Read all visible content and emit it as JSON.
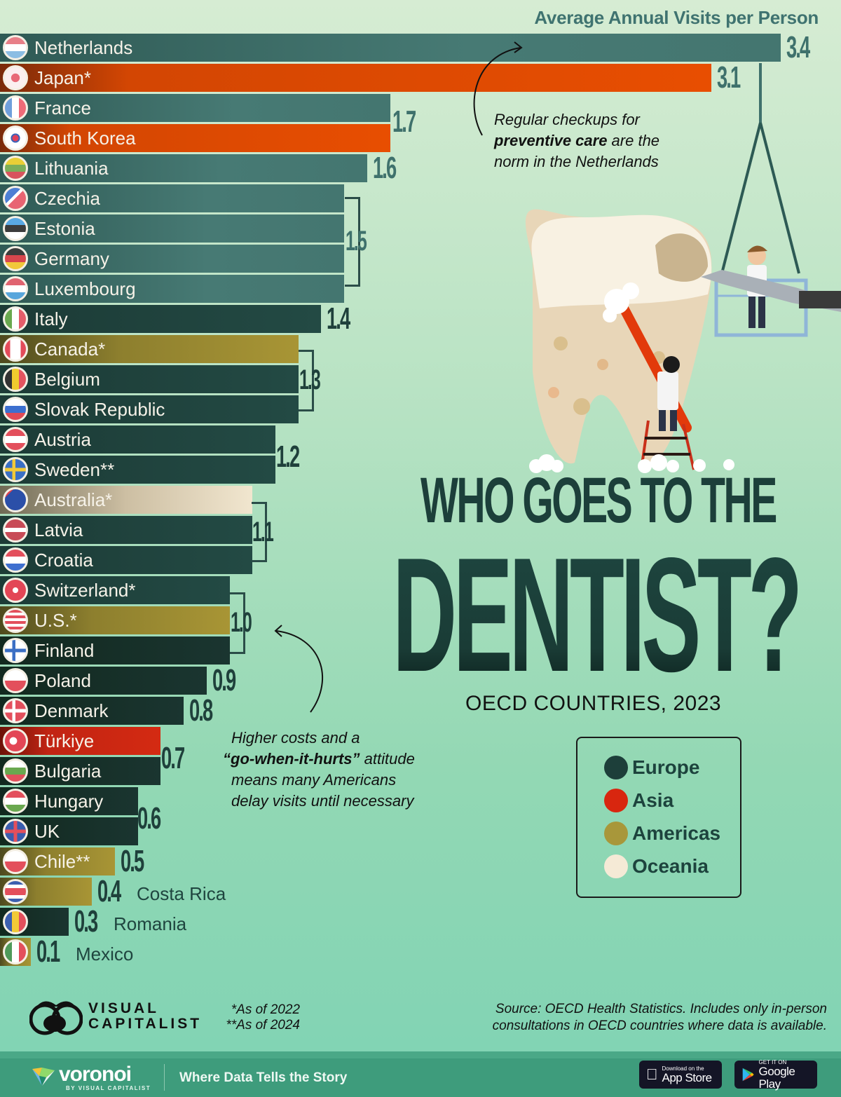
{
  "chart_data": {
    "type": "bar",
    "orientation": "horizontal",
    "title": "Who Goes to the Dentist?",
    "subtitle": "OECD Countries, 2023",
    "xlabel": "Average Annual Visits per Person",
    "ylabel": "",
    "xlim": [
      0,
      3.4
    ],
    "grid": false,
    "legend_position": "right",
    "categories": [
      "Netherlands",
      "Japan*",
      "France",
      "South Korea",
      "Lithuania",
      "Czechia",
      "Estonia",
      "Germany",
      "Luxembourg",
      "Italy",
      "Canada*",
      "Belgium",
      "Slovak Republic",
      "Austria",
      "Sweden**",
      "Australia*",
      "Latvia",
      "Croatia",
      "Switzerland*",
      "U.S.*",
      "Finland",
      "Poland",
      "Denmark",
      "Türkiye",
      "Bulgaria",
      "Hungary",
      "UK",
      "Chile**",
      "Costa Rica",
      "Romania",
      "Mexico"
    ],
    "values": [
      3.4,
      3.1,
      1.7,
      1.7,
      1.6,
      1.5,
      1.5,
      1.5,
      1.5,
      1.4,
      1.3,
      1.3,
      1.3,
      1.2,
      1.2,
      1.1,
      1.1,
      1.1,
      1.0,
      1.0,
      1.0,
      0.9,
      0.8,
      0.7,
      0.7,
      0.6,
      0.6,
      0.5,
      0.4,
      0.3,
      0.1
    ],
    "regions": [
      "Europe",
      "Asia",
      "Europe",
      "Asia",
      "Europe",
      "Europe",
      "Europe",
      "Europe",
      "Europe",
      "Europe",
      "Americas",
      "Europe",
      "Europe",
      "Europe",
      "Europe",
      "Oceania",
      "Europe",
      "Europe",
      "Europe",
      "Americas",
      "Europe",
      "Europe",
      "Europe",
      "Asia",
      "Europe",
      "Europe",
      "Europe",
      "Americas",
      "Americas",
      "Europe",
      "Americas"
    ],
    "legend": [
      {
        "name": "Europe",
        "color": "#1d3f3a"
      },
      {
        "name": "Asia",
        "color": "#d8260f"
      },
      {
        "name": "Americas",
        "color": "#a8973a"
      },
      {
        "name": "Oceania",
        "color": "#f5ead6"
      }
    ],
    "annotations": [
      "Regular checkups for preventive care are the norm in the Netherlands",
      "Higher costs and a “go-when-it-hurts” attitude means many Americans delay visits until necessary"
    ],
    "footnotes": [
      "*As of 2022",
      "**As of 2024"
    ]
  },
  "header": {
    "axis_title": "Average Annual Visits per Person"
  },
  "bars": [
    {
      "name": "Netherlands",
      "label": "3.4"
    },
    {
      "name": "Japan*",
      "label": "3.1"
    },
    {
      "name": "France",
      "label": ""
    },
    {
      "name": "South Korea",
      "label": ""
    },
    {
      "name": "Lithuania",
      "label": "1.6"
    },
    {
      "name": "Czechia",
      "label": ""
    },
    {
      "name": "Estonia",
      "label": ""
    },
    {
      "name": "Germany",
      "label": ""
    },
    {
      "name": "Luxembourg",
      "label": ""
    },
    {
      "name": "Italy",
      "label": "1.4"
    },
    {
      "name": "Canada*",
      "label": ""
    },
    {
      "name": "Belgium",
      "label": ""
    },
    {
      "name": "Slovak Republic",
      "label": ""
    },
    {
      "name": "Austria",
      "label": ""
    },
    {
      "name": "Sweden**",
      "label": ""
    },
    {
      "name": "Australia*",
      "label": ""
    },
    {
      "name": "Latvia",
      "label": ""
    },
    {
      "name": "Croatia",
      "label": ""
    },
    {
      "name": "Switzerland*",
      "label": ""
    },
    {
      "name": "U.S.*",
      "label": ""
    },
    {
      "name": "Finland",
      "label": ""
    },
    {
      "name": "Poland",
      "label": "0.9"
    },
    {
      "name": "Denmark",
      "label": "0.8"
    },
    {
      "name": "Türkiye",
      "label": ""
    },
    {
      "name": "Bulgaria",
      "label": ""
    },
    {
      "name": "Hungary",
      "label": ""
    },
    {
      "name": "UK",
      "label": ""
    },
    {
      "name": "Chile**",
      "label": "0.5"
    },
    {
      "name": "Costa Rica",
      "label": "0.4"
    },
    {
      "name": "Romania",
      "label": "0.3"
    },
    {
      "name": "Mexico",
      "label": "0.1"
    }
  ],
  "group_labels": {
    "g17": "1.7",
    "g15": "1.5",
    "g13": "1.3",
    "g12": "1.2",
    "g11": "1.1",
    "g10": "1.0",
    "g07": "0.7",
    "g06": "0.6"
  },
  "notes": {
    "netherlands": {
      "l1": "Regular checkups for",
      "l2_bold": "preventive care",
      "l2_rest": " are the",
      "l3": "norm in the Netherlands"
    },
    "us": {
      "l1": "Higher costs and a",
      "l2_bold": "“go-when-it-hurts”",
      "l2_rest": " attitude",
      "l3": "means many Americans",
      "l4": "delay visits until necessary"
    }
  },
  "title": {
    "line1": "WHO GOES TO THE",
    "line2": "DENTIST?",
    "subtitle": "OECD COUNTRIES, 2023"
  },
  "legend": {
    "items": [
      {
        "label": "Europe",
        "color": "#1d3f3a"
      },
      {
        "label": "Asia",
        "color": "#d8260f"
      },
      {
        "label": "Americas",
        "color": "#a8973a"
      },
      {
        "label": "Oceania",
        "color": "#f5ead6"
      }
    ]
  },
  "footer": {
    "brand_line1": "VISUAL",
    "brand_line2": "CAPITALIST",
    "footnote1": "*As of 2022",
    "footnote2": "**As of 2024",
    "source_l1": "Source: OECD Health Statistics. Includes only in-person",
    "source_l2": "consultations in OECD countries where data is available.",
    "voronoi": "voronoi",
    "voronoi_by": "BY VISUAL CAPITALIST",
    "tagline": "Where Data Tells the Story",
    "appstore_small": "Download on the",
    "appstore_big": "App Store",
    "play_small": "GET IT ON",
    "play_big": "Google Play"
  }
}
